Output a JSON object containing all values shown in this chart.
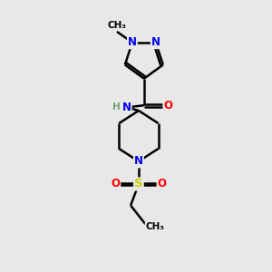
{
  "bg_color": "#e8e8e8",
  "atom_colors": {
    "N": "#0000ee",
    "O": "#ff0000",
    "S": "#cccc00",
    "C": "#000000",
    "H": "#6e9e6e"
  },
  "bond_color": "#000000",
  "bond_width": 1.8,
  "fig_width": 3.0,
  "fig_height": 3.0,
  "dpi": 100
}
